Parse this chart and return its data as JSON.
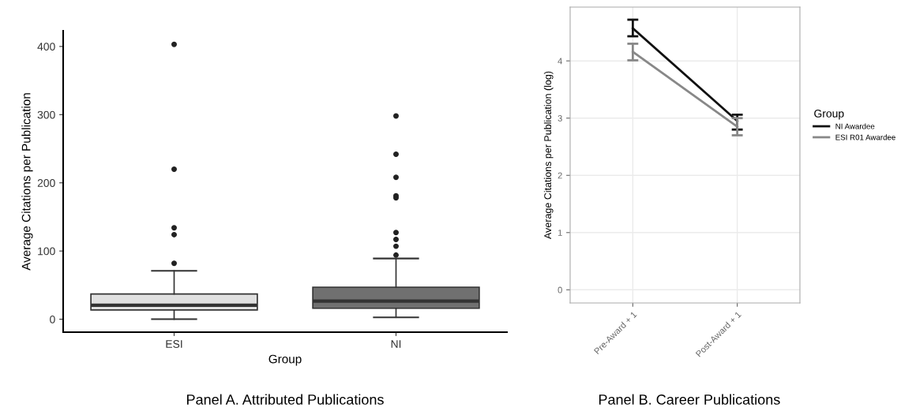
{
  "chart_data": [
    {
      "type": "box",
      "xlabel": "Group",
      "ylabel": "Average Citations per Publication",
      "categories": [
        "ESI",
        "NI"
      ],
      "colors": [
        "#e0e0e0",
        "#707070"
      ],
      "boxes": [
        {
          "low": 0,
          "q1": 13.5,
          "median": 20.5,
          "q3": 37,
          "high": 71,
          "outliers": [
            82,
            124,
            134,
            220,
            403
          ]
        },
        {
          "low": 2.7,
          "q1": 16,
          "median": 26.6,
          "q3": 47,
          "high": 89,
          "outliers": [
            94,
            107,
            117,
            127,
            178,
            181,
            208,
            242,
            298
          ]
        }
      ],
      "ylim": [
        -19,
        423
      ],
      "yticks": [
        0,
        100,
        200,
        300,
        400
      ],
      "grid": false,
      "annotations": [
        "Panel A. Attributed Publications"
      ]
    },
    {
      "type": "line",
      "ylabel": "Average Citations per Publication (log)",
      "categories": [
        "Pre-Award + 1",
        "Post-Award + 1"
      ],
      "legend_title": "Group",
      "legend": "right",
      "grid": true,
      "marker": "none",
      "series": [
        {
          "name": "NI Awardee",
          "color": "#111111",
          "values": [
            4.57,
            2.95
          ],
          "errors": [
            [
              4.43,
              4.72
            ],
            [
              2.8,
              3.06
            ]
          ]
        },
        {
          "name": "ESI R01 Awardee",
          "color": "#888888",
          "values": [
            4.16,
            2.85
          ],
          "errors": [
            [
              4.01,
              4.3
            ],
            [
              2.7,
              3.0
            ]
          ]
        }
      ],
      "ylim": [
        -0.23,
        4.94
      ],
      "yticks": [
        0,
        1,
        2,
        3,
        4
      ],
      "annotations": [
        "Panel B. Career Publications"
      ]
    }
  ]
}
